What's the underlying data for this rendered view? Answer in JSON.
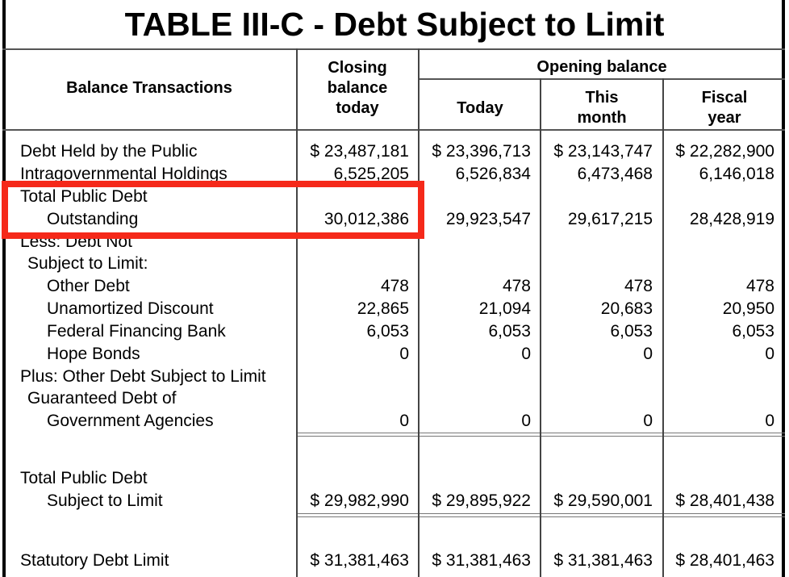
{
  "title": "TABLE III-C - Debt Subject to Limit",
  "headers": {
    "balance_transactions": "Balance Transactions",
    "closing": "Closing balance today",
    "opening": "Opening balance",
    "today": "Today",
    "this_month": "This month",
    "fiscal_year": "Fiscal year"
  },
  "highlight_color": "#f5291a",
  "rows": [
    {
      "label": "Debt Held by the Public",
      "values": [
        "$ 23,487,181",
        "$ 23,396,713",
        "$ 23,143,747",
        "$ 22,282,900"
      ]
    },
    {
      "label": "Intragovernmental Holdings",
      "values": [
        "6,525,205",
        "6,526,834",
        "6,473,468",
        "6,146,018"
      ]
    },
    {
      "label": "Total Public Debt",
      "values": []
    },
    {
      "label": "Outstanding",
      "values": [
        "30,012,386",
        "29,923,547",
        "29,617,215",
        "28,428,919"
      ],
      "highlighted": true
    },
    {
      "label": "Less: Debt Not",
      "values": []
    },
    {
      "label": "Subject to Limit:",
      "values": []
    },
    {
      "label": "Other Debt",
      "values": [
        "478",
        "478",
        "478",
        "478"
      ]
    },
    {
      "label": "Unamortized Discount",
      "values": [
        "22,865",
        "21,094",
        "20,683",
        "20,950"
      ]
    },
    {
      "label": "Federal Financing Bank",
      "values": [
        "6,053",
        "6,053",
        "6,053",
        "6,053"
      ]
    },
    {
      "label": "Hope Bonds",
      "values": [
        "0",
        "0",
        "0",
        "0"
      ]
    },
    {
      "label": "Plus: Other Debt Subject to Limit",
      "values": []
    },
    {
      "label": "Guaranteed Debt of",
      "values": []
    },
    {
      "label": "Government Agencies",
      "values": [
        "0",
        "0",
        "0",
        "0"
      ]
    },
    {
      "label": "Total Public Debt",
      "values": []
    },
    {
      "label": "Subject to Limit",
      "values": [
        "$ 29,982,990",
        "$ 29,895,922",
        "$ 29,590,001",
        "$ 28,401,438"
      ]
    },
    {
      "label": "Statutory Debt Limit",
      "values": [
        "$ 31,381,463",
        "$ 31,381,463",
        "$ 31,381,463",
        "$ 28,401,463"
      ]
    }
  ]
}
